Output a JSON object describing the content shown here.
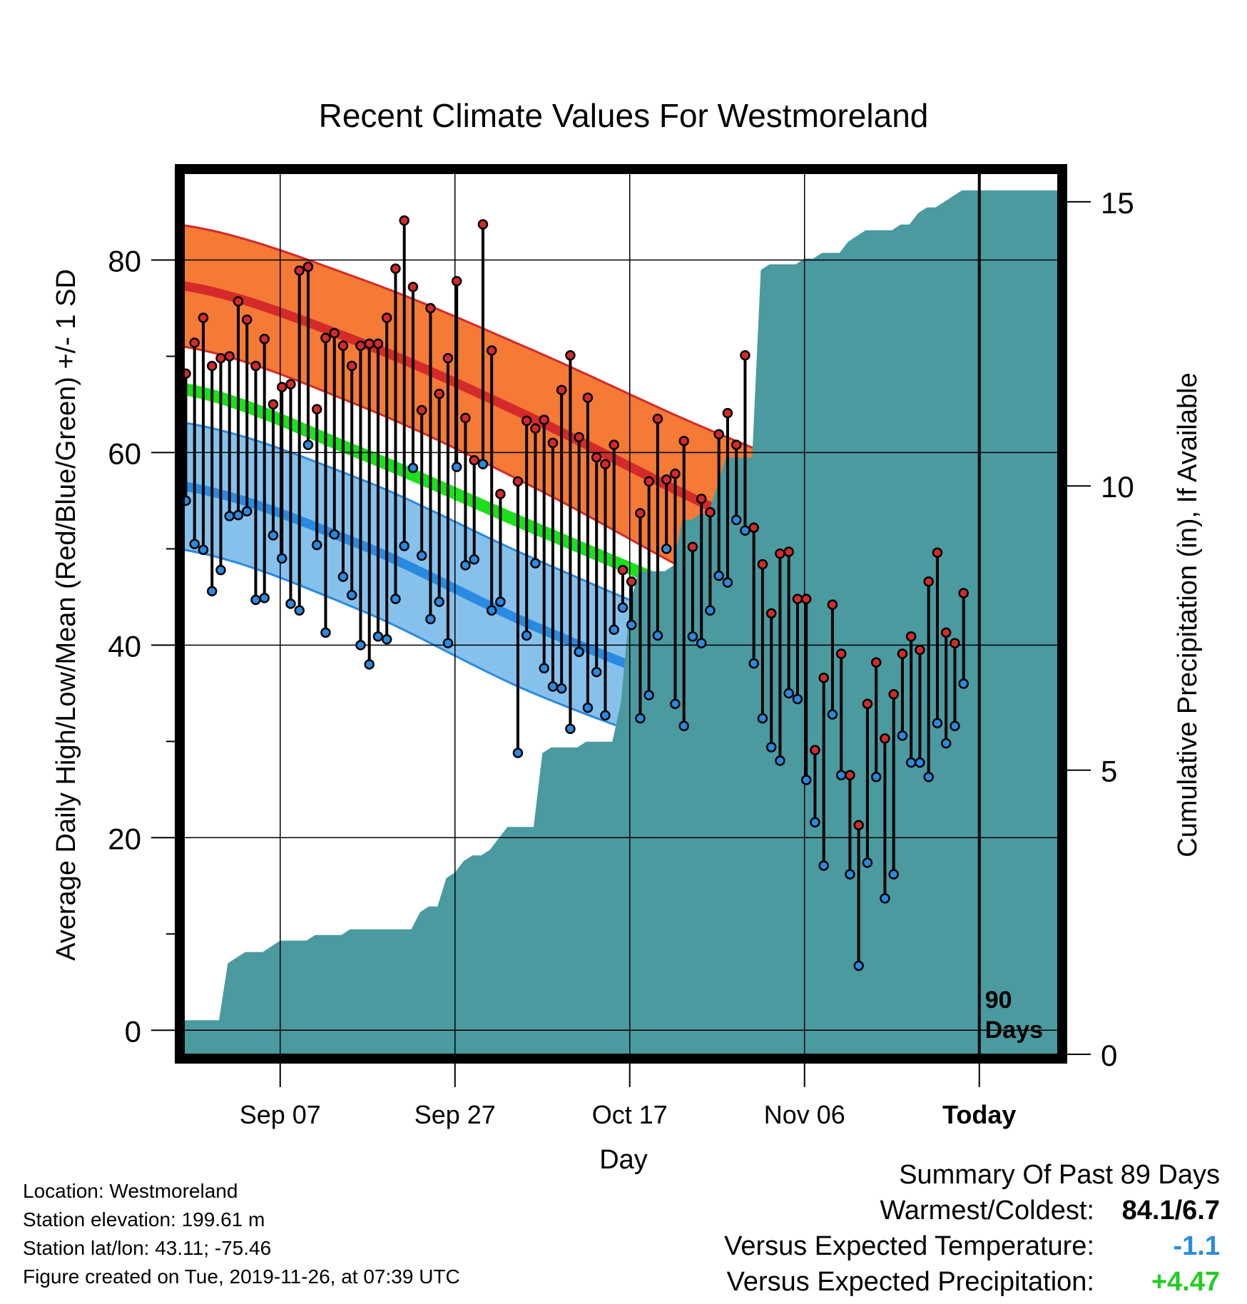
{
  "chart_data": {
    "type": "line",
    "title": "Recent Climate Values For Westmoreland",
    "xlabel": "Day",
    "ylabel": "Average Daily High/Low/Mean (Red/Blue/Green) +/- 1 SD",
    "y2label": "Cumulative Precipitation (in), If Available",
    "x_ticks": [
      "Sep 07",
      "Sep 27",
      "Oct 17",
      "Nov 06",
      "Today"
    ],
    "x_tick_days": [
      11,
      31,
      51,
      71,
      91
    ],
    "x_range_days": [
      0,
      100
    ],
    "ylim": [
      -2.5,
      89
    ],
    "y_ticks": [
      0,
      20,
      40,
      60,
      80
    ],
    "y2lim": [
      0,
      15.5
    ],
    "y2_ticks": [
      0,
      5,
      10,
      15
    ],
    "today_marker": {
      "day": 91,
      "label_line1": "90",
      "label_line2": "Days"
    },
    "normals": {
      "days": [
        0,
        20,
        40,
        60,
        80,
        100
      ],
      "high_mean": [
        77.3,
        71.5,
        63.5,
        54.5,
        46.5,
        38.8
      ],
      "high_sd": [
        6.3,
        6.6,
        7.1,
        7.9,
        8.8,
        10.2
      ],
      "low_mean": [
        56.5,
        50.5,
        42.0,
        35.0,
        30.0,
        24.0
      ],
      "low_sd": [
        6.6,
        6.8,
        7.0,
        6.5,
        6.0,
        5.5
      ],
      "avg_mean": [
        66.6,
        60.0,
        52.2,
        44.7,
        38.2,
        30.6
      ]
    },
    "series": [
      {
        "name": "High",
        "color": "#d42a2a",
        "start_day": 0,
        "values": [
          68.2,
          71.4,
          74.0,
          69.0,
          69.8,
          70.0,
          75.7,
          73.8,
          69.0,
          71.8,
          65.0,
          66.8,
          67.1,
          78.9,
          79.3,
          64.5,
          71.9,
          72.4,
          71.1,
          69.0,
          71.1,
          71.3,
          71.3,
          74.0,
          79.1,
          84.1,
          77.2,
          64.4,
          75.0,
          66.1,
          69.8,
          77.8,
          63.6,
          59.2,
          83.7,
          70.6,
          55.7,
          null,
          57.0,
          63.3,
          62.5,
          63.4,
          61.0,
          66.5,
          70.1,
          61.6,
          65.7,
          59.5,
          58.8,
          60.8,
          47.8,
          46.6,
          53.7,
          57.0,
          63.5,
          57.2,
          57.8,
          61.2,
          50.2,
          55.2,
          53.8,
          61.9,
          64.1,
          60.8,
          70.1,
          52.2,
          48.4,
          43.3,
          49.5,
          49.7,
          44.8,
          44.8,
          29.1,
          36.6,
          44.2,
          39.1,
          26.5,
          21.3,
          33.9,
          38.2,
          30.3,
          34.9,
          39.1,
          40.9,
          39.5,
          46.6,
          49.6,
          41.3,
          40.2,
          45.4
        ]
      },
      {
        "name": "Low",
        "color": "#2a8ae0",
        "start_day": 0,
        "values": [
          55.0,
          50.5,
          49.9,
          45.6,
          47.8,
          53.4,
          53.5,
          53.9,
          44.7,
          44.9,
          51.4,
          49.0,
          44.3,
          43.6,
          60.8,
          50.4,
          41.3,
          51.5,
          47.1,
          45.2,
          40.0,
          38.0,
          40.9,
          40.6,
          44.8,
          50.3,
          58.4,
          49.3,
          42.7,
          44.5,
          40.2,
          58.5,
          48.3,
          48.9,
          58.8,
          43.6,
          44.5,
          null,
          28.8,
          41.0,
          48.5,
          37.6,
          35.7,
          35.5,
          31.3,
          39.3,
          33.5,
          37.2,
          32.7,
          41.6,
          43.9,
          42.1,
          32.4,
          34.8,
          41.0,
          50.0,
          33.9,
          31.6,
          40.9,
          40.2,
          43.6,
          47.2,
          46.5,
          53.0,
          51.9,
          38.1,
          32.4,
          29.4,
          28.0,
          35.0,
          34.4,
          26.0,
          21.6,
          17.1,
          32.8,
          26.5,
          16.2,
          6.7,
          17.4,
          26.3,
          13.7,
          16.2,
          30.6,
          27.8,
          27.8,
          26.3,
          31.9,
          29.8,
          31.6,
          36.0
        ]
      },
      {
        "name": "Cumulative Precipitation",
        "color": "#4a9aa0",
        "start_day": 0,
        "values": [
          0.6,
          0.6,
          0.6,
          0.6,
          0.6,
          1.6,
          1.7,
          1.8,
          1.8,
          1.8,
          1.9,
          2.0,
          2.0,
          2.0,
          2.0,
          2.1,
          2.1,
          2.1,
          2.1,
          2.2,
          2.2,
          2.2,
          2.2,
          2.2,
          2.2,
          2.2,
          2.2,
          2.5,
          2.6,
          2.6,
          3.1,
          3.2,
          3.4,
          3.5,
          3.5,
          3.6,
          3.8,
          4.0,
          4.0,
          4.0,
          4.0,
          5.3,
          5.4,
          5.4,
          5.4,
          5.4,
          5.5,
          5.5,
          5.5,
          5.5,
          6.2,
          7.9,
          8.5,
          8.5,
          8.5,
          8.5,
          8.6,
          9.4,
          9.4,
          9.5,
          9.5,
          10.0,
          10.5,
          10.5,
          10.5,
          10.5,
          13.8,
          13.9,
          13.9,
          13.9,
          13.9,
          14.0,
          14.0,
          14.1,
          14.1,
          14.1,
          14.3,
          14.4,
          14.5,
          14.5,
          14.5,
          14.5,
          14.6,
          14.6,
          14.8,
          14.9,
          14.9,
          15.0,
          15.1,
          15.2,
          15.2,
          15.2,
          15.2,
          15.2,
          15.2,
          15.2,
          15.2,
          15.2,
          15.2,
          15.2,
          15.2
        ]
      }
    ],
    "grid": true
  },
  "info": {
    "location": "Location: Westmoreland",
    "elevation": "Station elevation: 199.61 m",
    "latlon": "Station lat/lon: 43.11; -75.46",
    "created": "Figure created on Tue, 2019-11-26, at 07:39 UTC"
  },
  "summary": {
    "heading": "Summary Of Past 89 Days",
    "warm_label": "Warmest/Coldest:",
    "warm_value": "84.1/6.7",
    "temp_label": "Versus Expected Temperature:",
    "temp_value": "-1.1",
    "temp_color": "#2a8ae0",
    "precip_label": "Versus Expected Precipitation:",
    "precip_value": "+4.47",
    "precip_color": "#22cc22"
  }
}
